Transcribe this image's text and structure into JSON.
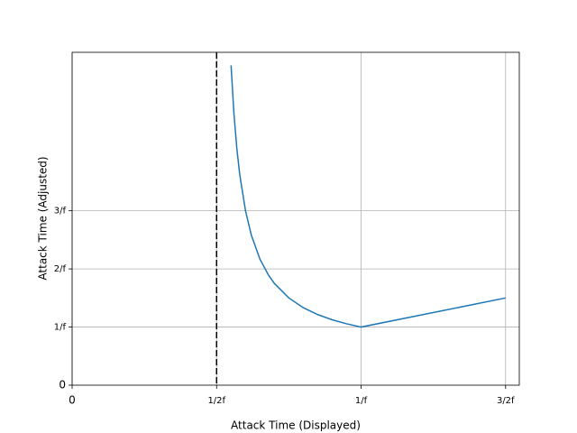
{
  "chart_data": {
    "type": "line",
    "x_label": "Attack Time (Displayed)",
    "y_label": "Attack Time (Adjusted)",
    "x": [
      0.55,
      0.56,
      0.57,
      0.58,
      0.6,
      0.62,
      0.65,
      0.68,
      0.7,
      0.75,
      0.8,
      0.85,
      0.9,
      0.95,
      1.0,
      1.5
    ],
    "series": [
      {
        "color": "#1f77b4",
        "values": [
          5.5,
          4.667,
          4.071,
          3.625,
          3.0,
          2.583,
          2.167,
          1.889,
          1.75,
          1.5,
          1.333,
          1.214,
          1.125,
          1.056,
          1.0,
          1.5
        ]
      }
    ],
    "vline": {
      "value": 0.5,
      "color": "#000000",
      "style": "dashed"
    },
    "xlim": [
      0,
      1.5475
    ],
    "ylim": [
      0,
      5.725
    ],
    "xticks": [
      0,
      {
        "value": 0.5,
        "label": "1/2f"
      },
      {
        "value": 1,
        "label": "1/f"
      },
      {
        "value": 1.5,
        "label": "3/2f"
      }
    ],
    "yticks": [
      0,
      {
        "value": 1,
        "label": "1/f"
      },
      {
        "value": 2,
        "label": "2/f"
      },
      {
        "value": 3,
        "label": "3/f"
      }
    ],
    "grid": true
  }
}
